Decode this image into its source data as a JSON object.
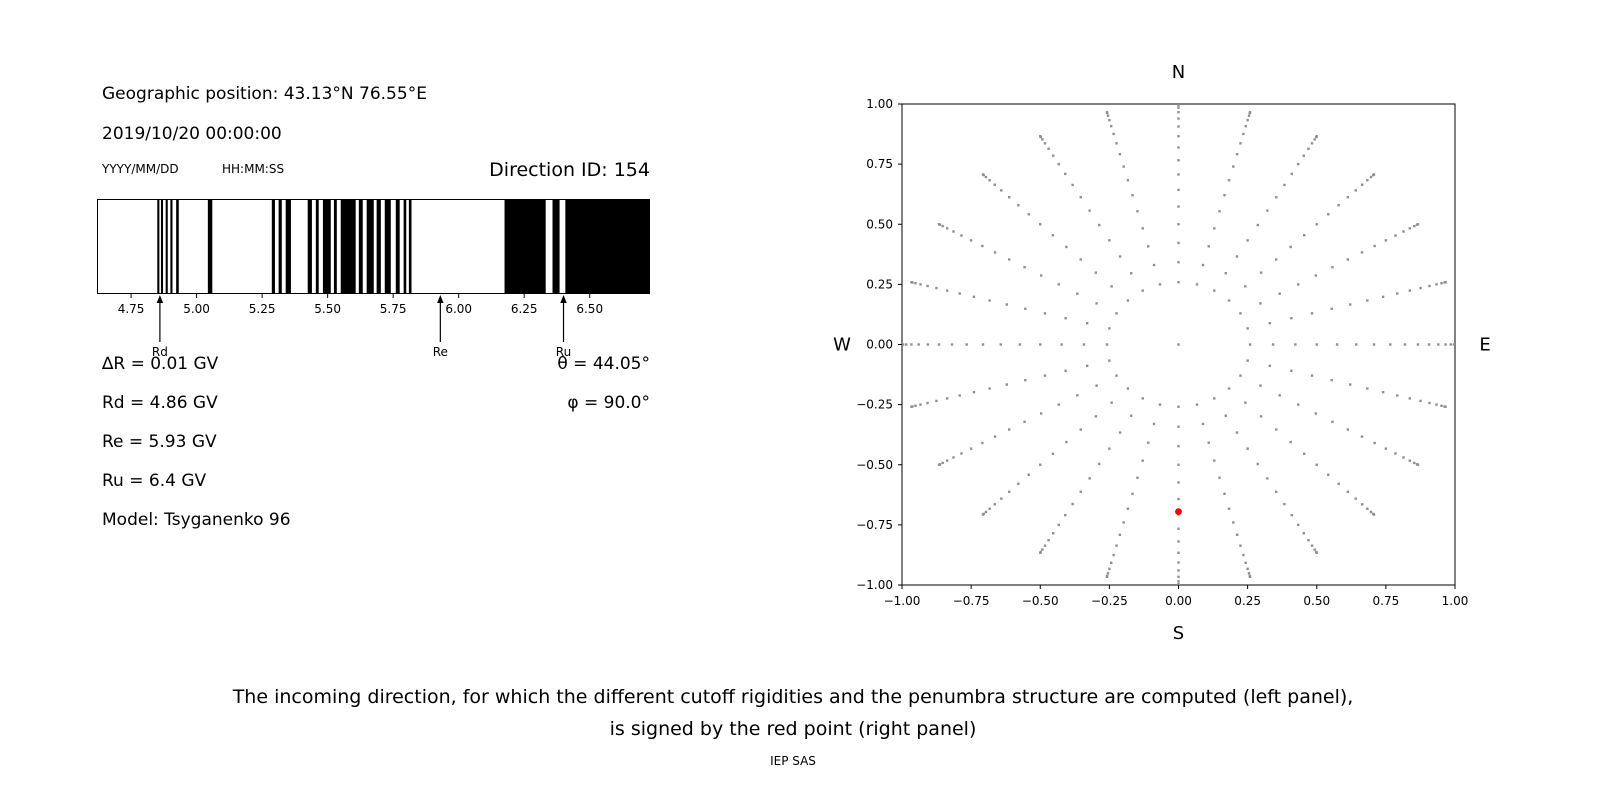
{
  "header": {
    "geo_position": "Geographic position: 43.13°N 76.55°E",
    "datetime": "2019/10/20 00:00:00",
    "date_format_label": "YYYY/MM/DD",
    "time_format_label": "HH:MM:SS",
    "direction_id_label": "Direction ID: 154"
  },
  "left_panel_params": {
    "delta_r": "∆R = 0.01 GV",
    "rd": "Rd = 4.86 GV",
    "re": "Re = 5.93 GV",
    "ru": "Ru = 6.4 GV",
    "model": "Model: Tsyganenko 96",
    "theta": "θ = 44.05°",
    "phi": "φ = 90.0°"
  },
  "caption": {
    "line1": "The incoming direction, for which the different cutoff rigidities and the penumbra structure are computed (left panel),",
    "line2": "is signed by the red point (right panel)",
    "credit": "IEP SAS"
  },
  "chart_data": [
    {
      "id": "penumbra-barcode",
      "type": "bar",
      "title": "",
      "xlabel": "",
      "ylabel": "",
      "xlim": [
        4.62,
        6.73
      ],
      "xticks": [
        4.75,
        5.0,
        5.25,
        5.5,
        5.75,
        6.0,
        6.25,
        6.5
      ],
      "bar_color": "#000000",
      "black_intervals_gv": [
        [
          4.85,
          4.858
        ],
        [
          4.864,
          4.872
        ],
        [
          4.882,
          4.89
        ],
        [
          4.9,
          4.908
        ],
        [
          4.922,
          4.932
        ],
        [
          5.043,
          5.06
        ],
        [
          5.287,
          5.299
        ],
        [
          5.313,
          5.325
        ],
        [
          5.34,
          5.36
        ],
        [
          5.424,
          5.44
        ],
        [
          5.455,
          5.466
        ],
        [
          5.482,
          5.512
        ],
        [
          5.524,
          5.535
        ],
        [
          5.55,
          5.607
        ],
        [
          5.619,
          5.634
        ],
        [
          5.649,
          5.676
        ],
        [
          5.687,
          5.703
        ],
        [
          5.718,
          5.741
        ],
        [
          5.76,
          5.775
        ],
        [
          5.79,
          5.8
        ],
        [
          5.81,
          5.82
        ],
        [
          6.175,
          6.332
        ],
        [
          6.358,
          6.385
        ],
        [
          6.407,
          6.73
        ]
      ],
      "markers": [
        {
          "label": "Rd",
          "value_gv": 4.86
        },
        {
          "label": "Re",
          "value_gv": 5.93
        },
        {
          "label": "Ru",
          "value_gv": 6.4
        }
      ]
    },
    {
      "id": "incoming-directions",
      "type": "scatter",
      "title": "",
      "xlabel": "",
      "ylabel": "",
      "xlim": [
        -1,
        1
      ],
      "ylim": [
        -1,
        1
      ],
      "xticks": [
        -1,
        -0.75,
        -0.5,
        -0.25,
        0,
        0.25,
        0.5,
        0.75,
        1
      ],
      "yticks": [
        -1,
        -0.75,
        -0.5,
        -0.25,
        0,
        0.25,
        0.5,
        0.75,
        1
      ],
      "compass": {
        "top": "N",
        "bottom": "S",
        "left": "W",
        "right": "E"
      },
      "direction_grid": {
        "azimuth_start_deg": 0,
        "azimuth_step_deg": 15,
        "azimuth_count": 24,
        "zenith_values_deg": [
          0,
          15,
          20,
          25,
          30,
          35,
          40,
          45,
          50,
          55,
          60,
          65,
          70,
          75,
          80,
          85,
          90
        ],
        "radius_rule": "r = sin(zenith)",
        "dot_color": "#8f8f8f"
      },
      "red_point": {
        "x": 0.0,
        "y": -0.695,
        "zenith_deg": 44.05,
        "azimuth_deg": 90.0,
        "color": "#ff0000"
      }
    }
  ]
}
